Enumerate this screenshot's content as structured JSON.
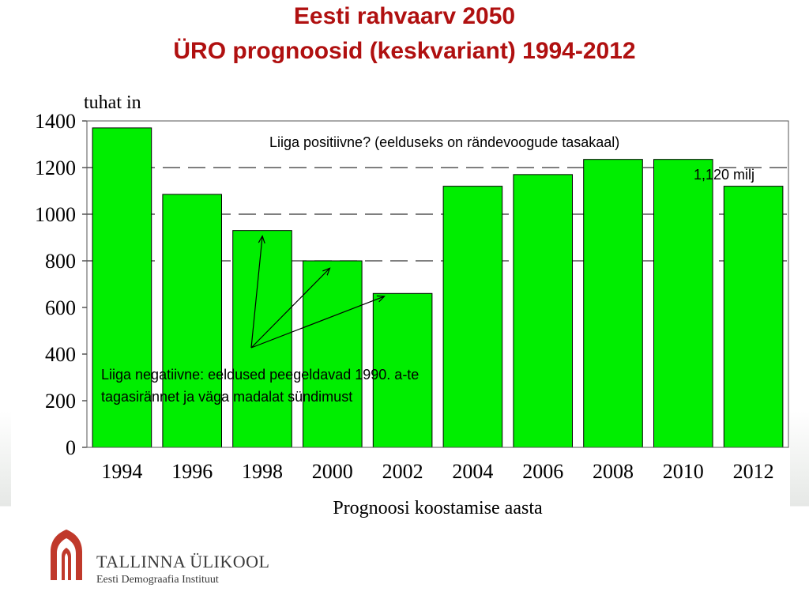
{
  "slide": {
    "title_line1": "Eesti rahvaarv 2050",
    "title_line2": "ÜRO prognoosid (keskvariant) 1994-2012"
  },
  "chart_data": {
    "type": "bar",
    "categories": [
      "1994",
      "1996",
      "1998",
      "2000",
      "2002",
      "2004",
      "2006",
      "2008",
      "2010",
      "2012"
    ],
    "values": [
      1370,
      1085,
      930,
      800,
      660,
      1120,
      1170,
      1235,
      1235,
      1120
    ],
    "ylabel": "tuhat in",
    "xlabel": "Prognoosi koostamise aasta",
    "ylim": [
      0,
      1400
    ],
    "yticks": [
      "0",
      "200",
      "400",
      "600",
      "800",
      "1000",
      "1200",
      "1400"
    ],
    "reference_lines": [
      1200,
      1000,
      800
    ],
    "bar_color": "#00ee00",
    "annotations": {
      "positive": "Liiga positiivne? (eelduseks on rändevoogude tasakaal)",
      "value_label": "1,120 milj",
      "negative_line1": "Liiga negatiivne: eeldused peegeldavad 1990. a-te",
      "negative_line2": "tagasirännet ja väga madalat sündimust"
    }
  },
  "footer": {
    "org_name": "TALLINNA ÜLIKOOL",
    "org_sub": "Eesti Demograafia Instituut",
    "logo_icon": "arch-logo-icon",
    "logo_color": "#c0392b"
  }
}
